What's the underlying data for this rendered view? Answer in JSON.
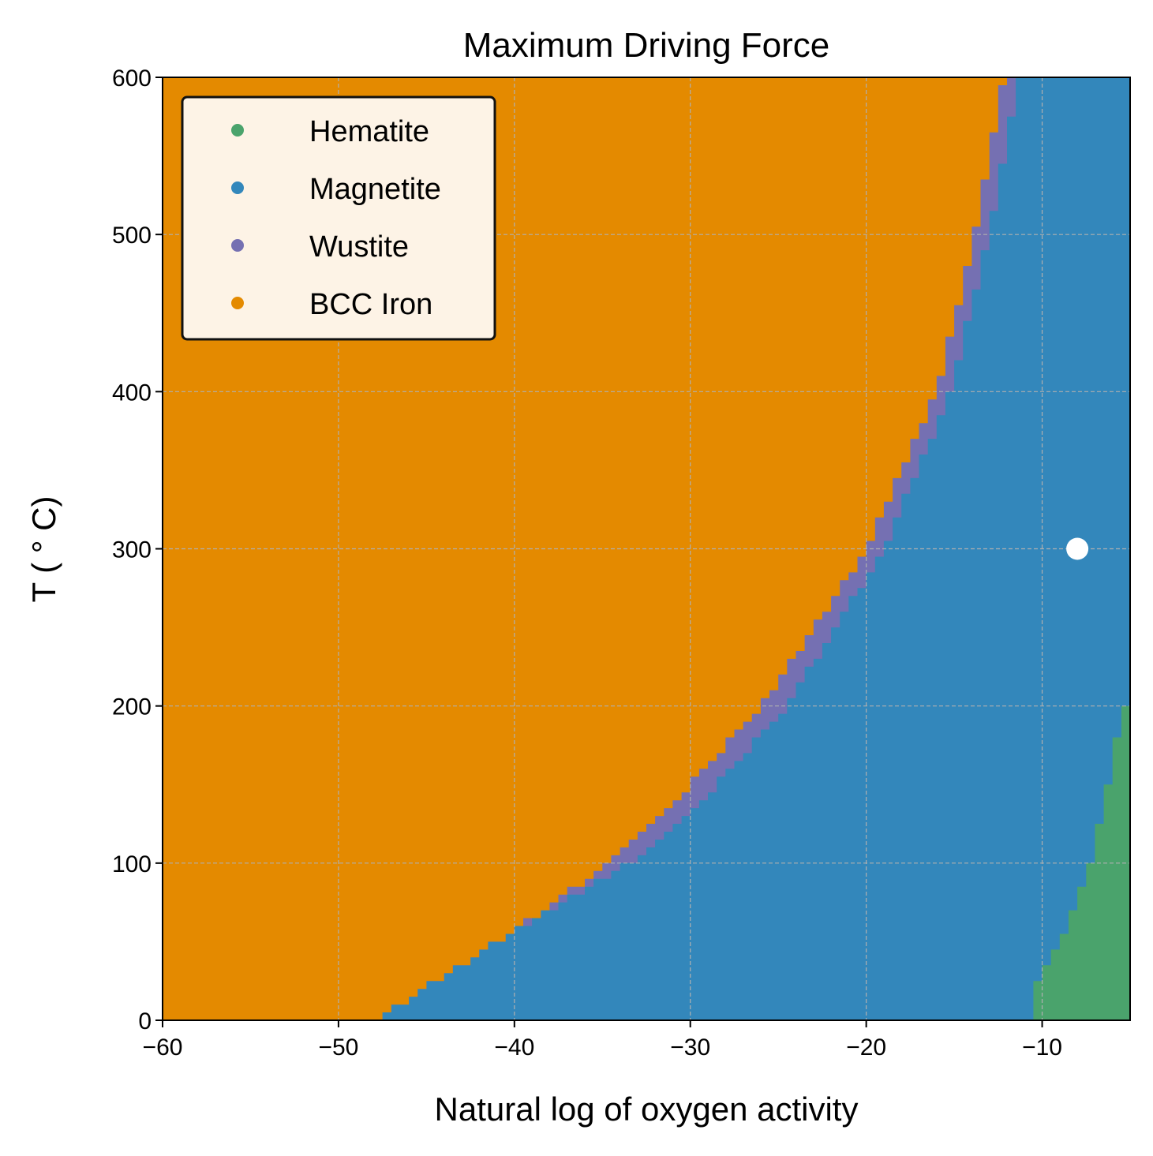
{
  "chart_data": {
    "type": "heatmap",
    "title": "Maximum Driving Force",
    "xlabel": "Natural log of oxygen activity",
    "ylabel": "T ( ° C)",
    "xlim": [
      -60,
      -5
    ],
    "ylim": [
      0,
      600
    ],
    "x_ticks": [
      -60,
      -50,
      -40,
      -30,
      -20,
      -10
    ],
    "x_tick_labels": [
      "−60",
      "−50",
      "−40",
      "−30",
      "−20",
      "−10"
    ],
    "y_ticks": [
      0,
      100,
      200,
      300,
      400,
      500,
      600
    ],
    "y_tick_labels": [
      "0",
      "100",
      "200",
      "300",
      "400",
      "500",
      "600"
    ],
    "grid": true,
    "legend_position": "top-left",
    "phases": [
      {
        "name": "Hematite",
        "color": "#4aa36c"
      },
      {
        "name": "Magnetite",
        "color": "#3387bb"
      },
      {
        "name": "Wustite",
        "color": "#7570b2"
      },
      {
        "name": "BCC Iron",
        "color": "#e48a00"
      }
    ],
    "boundaries": {
      "bcc_iron_wustite": {
        "T": [
          0,
          50,
          100,
          150,
          200,
          300,
          400,
          500,
          600
        ],
        "lnaO2": [
          -48,
          -41,
          -34.5,
          -30,
          -26,
          -20,
          -16,
          -13.8,
          -12.2
        ]
      },
      "wustite_magnetite": {
        "T": [
          0,
          50,
          100,
          150,
          200,
          300,
          400,
          500,
          600
        ],
        "lnaO2": [
          -48,
          -41,
          -33.5,
          -28.5,
          -24.5,
          -19,
          -15.2,
          -13,
          -11.3
        ]
      },
      "magnetite_hematite": {
        "T": [
          0,
          25,
          50,
          100,
          150,
          200
        ],
        "lnaO2": [
          -10.8,
          -10.2,
          -8.9,
          -7.3,
          -6.2,
          -5.4
        ]
      }
    },
    "marker": {
      "x": -8,
      "y": 300,
      "color": "#ffffff"
    }
  }
}
